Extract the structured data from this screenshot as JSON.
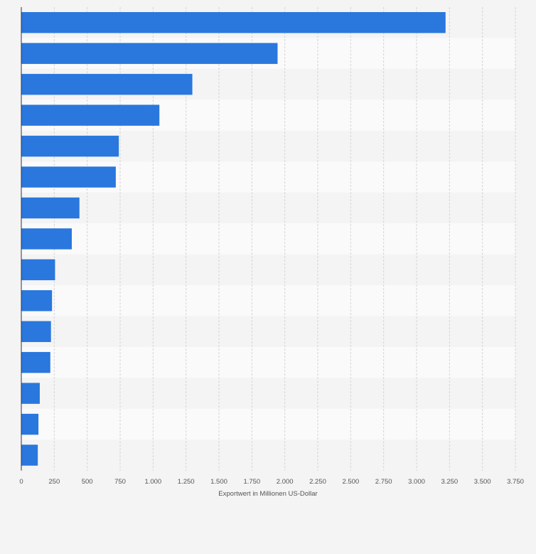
{
  "chart_data": {
    "type": "bar",
    "orientation": "horizontal",
    "categories": [
      "",
      "",
      "",
      "",
      "",
      "",
      "",
      "",
      "",
      "",
      "",
      "",
      "",
      "",
      ""
    ],
    "values": [
      3220,
      1945,
      1298,
      1048,
      740,
      717,
      441,
      383,
      256,
      233,
      225,
      220,
      140,
      130,
      125
    ],
    "xlabel": "Exportwert in Millionen US-Dollar",
    "ylabel": "",
    "xlim": [
      0,
      3750
    ],
    "xticks": [
      0,
      250,
      500,
      750,
      1000,
      1250,
      1500,
      1750,
      2000,
      2250,
      2500,
      2750,
      3000,
      3250,
      3500,
      3750
    ],
    "xtick_labels": [
      "0",
      "250",
      "500",
      "750",
      "1.000",
      "1.250",
      "1.500",
      "1.750",
      "2.000",
      "2.250",
      "2.500",
      "2.750",
      "3.000",
      "3.250",
      "3.500",
      "3.750"
    ],
    "grid": true,
    "legend": "none",
    "bar_color": "#2a77dd",
    "band_colors": [
      "#f4f4f4",
      "#fafafa"
    ],
    "gridline_color": "#d4d4d4",
    "axis_color": "#333333",
    "tick_label_color": "#555555"
  }
}
